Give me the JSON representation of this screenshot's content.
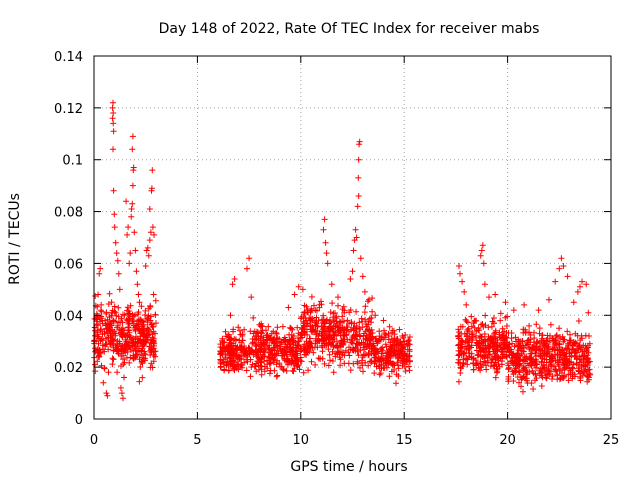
{
  "chart_data": {
    "type": "scatter",
    "title": "Day 148 of 2022, Rate Of TEC Index for receiver mabs",
    "xlabel": "GPS time / hours",
    "ylabel": "ROTI / TECUs",
    "xlim": [
      0,
      25
    ],
    "ylim": [
      0,
      0.14
    ],
    "xticks": [
      0,
      5,
      10,
      15,
      20,
      25
    ],
    "yticks": [
      0,
      0.02,
      0.04,
      0.06,
      0.08,
      0.1,
      0.12,
      0.14
    ],
    "xtick_labels": [
      "0",
      "5",
      "10",
      "15",
      "20",
      "25"
    ],
    "ytick_labels": [
      "0",
      "0.02",
      "0.04",
      "0.06",
      "0.08",
      "0.1",
      "0.12",
      "0.14"
    ],
    "grid": true,
    "marker": "+",
    "color": "#ff0000",
    "segments": [
      {
        "x_range": [
          0.0,
          3.0
        ],
        "baseline": 0.032,
        "spread": 0.022,
        "count": 420
      },
      {
        "x_range": [
          6.1,
          10.0
        ],
        "baseline": 0.026,
        "spread": 0.017,
        "count": 480
      },
      {
        "x_range": [
          10.0,
          13.5
        ],
        "baseline": 0.032,
        "spread": 0.022,
        "count": 430
      },
      {
        "x_range": [
          13.5,
          15.3
        ],
        "baseline": 0.026,
        "spread": 0.016,
        "count": 220
      },
      {
        "x_range": [
          17.6,
          20.0
        ],
        "baseline": 0.028,
        "spread": 0.02,
        "count": 300
      },
      {
        "x_range": [
          20.0,
          24.0
        ],
        "baseline": 0.024,
        "spread": 0.02,
        "count": 520
      }
    ],
    "points": [
      [
        0.05,
        0.021
      ],
      [
        0.1,
        0.03
      ],
      [
        0.15,
        0.04
      ],
      [
        0.2,
        0.048
      ],
      [
        0.25,
        0.056
      ],
      [
        0.3,
        0.058
      ],
      [
        0.35,
        0.044
      ],
      [
        0.4,
        0.038
      ],
      [
        0.45,
        0.014
      ],
      [
        0.5,
        0.026
      ],
      [
        0.6,
        0.01
      ],
      [
        0.65,
        0.009
      ],
      [
        0.7,
        0.018
      ],
      [
        0.8,
        0.032
      ],
      [
        0.85,
        0.045
      ],
      [
        0.9,
        0.12
      ],
      [
        0.92,
        0.122
      ],
      [
        0.93,
        0.118
      ],
      [
        0.9,
        0.116
      ],
      [
        0.93,
        0.114
      ],
      [
        0.95,
        0.111
      ],
      [
        0.92,
        0.104
      ],
      [
        0.95,
        0.088
      ],
      [
        0.98,
        0.079
      ],
      [
        1.0,
        0.074
      ],
      [
        1.05,
        0.068
      ],
      [
        1.1,
        0.064
      ],
      [
        1.15,
        0.061
      ],
      [
        1.2,
        0.056
      ],
      [
        1.25,
        0.05
      ],
      [
        1.3,
        0.012
      ],
      [
        1.35,
        0.01
      ],
      [
        1.4,
        0.008
      ],
      [
        1.45,
        0.016
      ],
      [
        1.55,
        0.084
      ],
      [
        1.6,
        0.071
      ],
      [
        1.65,
        0.074
      ],
      [
        1.7,
        0.06
      ],
      [
        1.75,
        0.064
      ],
      [
        1.8,
        0.078
      ],
      [
        1.82,
        0.081
      ],
      [
        1.85,
        0.083
      ],
      [
        1.88,
        0.09
      ],
      [
        1.9,
        0.096
      ],
      [
        1.92,
        0.097
      ],
      [
        1.85,
        0.104
      ],
      [
        1.88,
        0.109
      ],
      [
        1.95,
        0.072
      ],
      [
        2.0,
        0.065
      ],
      [
        2.05,
        0.057
      ],
      [
        2.1,
        0.052
      ],
      [
        2.15,
        0.048
      ],
      [
        2.2,
        0.045
      ],
      [
        2.25,
        0.038
      ],
      [
        2.3,
        0.033
      ],
      [
        2.35,
        0.028
      ],
      [
        2.4,
        0.035
      ],
      [
        2.5,
        0.059
      ],
      [
        2.55,
        0.065
      ],
      [
        2.6,
        0.066
      ],
      [
        2.65,
        0.063
      ],
      [
        2.7,
        0.069
      ],
      [
        2.75,
        0.072
      ],
      [
        2.8,
        0.089
      ],
      [
        2.82,
        0.096
      ],
      [
        2.78,
        0.088
      ],
      [
        2.85,
        0.074
      ],
      [
        2.9,
        0.071
      ],
      [
        2.7,
        0.081
      ],
      [
        2.88,
        0.048
      ],
      [
        6.5,
        0.032
      ],
      [
        6.6,
        0.04
      ],
      [
        6.7,
        0.052
      ],
      [
        6.8,
        0.054
      ],
      [
        7.4,
        0.058
      ],
      [
        7.5,
        0.062
      ],
      [
        7.6,
        0.047
      ],
      [
        7.7,
        0.039
      ],
      [
        8.1,
        0.036
      ],
      [
        8.6,
        0.033
      ],
      [
        9.4,
        0.043
      ],
      [
        9.7,
        0.048
      ],
      [
        9.9,
        0.051
      ],
      [
        10.1,
        0.05
      ],
      [
        10.4,
        0.038
      ],
      [
        10.7,
        0.042
      ],
      [
        10.9,
        0.044
      ],
      [
        11.1,
        0.073
      ],
      [
        11.15,
        0.077
      ],
      [
        11.2,
        0.068
      ],
      [
        11.25,
        0.064
      ],
      [
        11.3,
        0.06
      ],
      [
        11.5,
        0.052
      ],
      [
        11.8,
        0.047
      ],
      [
        12.1,
        0.041
      ],
      [
        12.4,
        0.054
      ],
      [
        12.5,
        0.057
      ],
      [
        12.55,
        0.065
      ],
      [
        12.6,
        0.069
      ],
      [
        12.65,
        0.073
      ],
      [
        12.7,
        0.07
      ],
      [
        12.75,
        0.082
      ],
      [
        12.8,
        0.086
      ],
      [
        12.78,
        0.093
      ],
      [
        12.8,
        0.1
      ],
      [
        12.82,
        0.106
      ],
      [
        12.85,
        0.107
      ],
      [
        12.9,
        0.062
      ],
      [
        13.0,
        0.055
      ],
      [
        13.1,
        0.049
      ],
      [
        13.3,
        0.046
      ],
      [
        13.6,
        0.04
      ],
      [
        14.0,
        0.038
      ],
      [
        14.5,
        0.034
      ],
      [
        15.0,
        0.03
      ],
      [
        17.65,
        0.059
      ],
      [
        17.7,
        0.056
      ],
      [
        17.8,
        0.053
      ],
      [
        17.9,
        0.049
      ],
      [
        18.0,
        0.044
      ],
      [
        18.7,
        0.063
      ],
      [
        18.75,
        0.065
      ],
      [
        18.8,
        0.067
      ],
      [
        18.85,
        0.06
      ],
      [
        18.9,
        0.052
      ],
      [
        19.1,
        0.047
      ],
      [
        19.4,
        0.048
      ],
      [
        19.9,
        0.045
      ],
      [
        20.3,
        0.042
      ],
      [
        20.8,
        0.044
      ],
      [
        21.5,
        0.042
      ],
      [
        22.0,
        0.046
      ],
      [
        22.3,
        0.053
      ],
      [
        22.5,
        0.058
      ],
      [
        22.6,
        0.062
      ],
      [
        22.7,
        0.059
      ],
      [
        22.9,
        0.055
      ],
      [
        23.2,
        0.045
      ],
      [
        23.4,
        0.049
      ],
      [
        23.5,
        0.051
      ],
      [
        23.6,
        0.053
      ],
      [
        23.8,
        0.052
      ],
      [
        23.9,
        0.041
      ]
    ]
  }
}
